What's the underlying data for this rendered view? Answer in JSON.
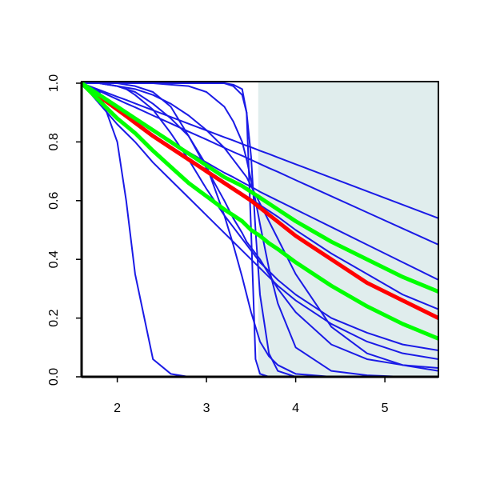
{
  "chart_data": {
    "type": "line",
    "x": [
      1.6,
      1.8,
      2.0,
      2.1,
      2.2,
      2.4,
      2.6,
      2.8,
      3.0,
      3.2,
      3.3,
      3.4,
      3.45,
      3.5,
      3.55,
      3.6,
      3.7,
      3.8,
      4.0,
      4.4,
      4.8,
      5.2,
      5.6
    ],
    "xlim": [
      1.6,
      5.6
    ],
    "xticks": [
      2,
      3,
      4,
      5
    ],
    "ylim": [
      0,
      1
    ],
    "yticks": [
      {
        "value": 0,
        "label": "0.0"
      },
      0.2,
      0.4,
      0.6,
      0.8,
      {
        "value": 1,
        "label": "1.0"
      }
    ],
    "shade": {
      "xmin": 3.58,
      "xmax": 5.6,
      "color": "#e0eded"
    },
    "series": [
      {
        "color": "#1a1ae6",
        "values": [
          1,
          0.97,
          0.8,
          0.6,
          0.35,
          0.06,
          0.01,
          0,
          0,
          0,
          0,
          0,
          0,
          0,
          0,
          0,
          0,
          0,
          0,
          0,
          0,
          0,
          0
        ]
      },
      {
        "color": "#1a1ae6",
        "values": [
          1,
          1,
          0.99,
          0.98,
          0.97,
          0.93,
          0.88,
          0.82,
          0.72,
          0.55,
          0.45,
          0.34,
          0.28,
          0.22,
          0.17,
          0.12,
          0.07,
          0.04,
          0.01,
          0,
          0,
          0,
          0
        ]
      },
      {
        "color": "#1a1ae6",
        "values": [
          1,
          1,
          1,
          1,
          1,
          1,
          1,
          1,
          1,
          1,
          0.995,
          0.98,
          0.9,
          0.5,
          0.06,
          0.01,
          0,
          0,
          0,
          0,
          0,
          0,
          0
        ]
      },
      {
        "color": "#1a1ae6",
        "values": [
          1,
          1,
          1,
          1,
          1,
          1,
          1,
          1,
          1,
          1,
          0.99,
          0.96,
          0.9,
          0.75,
          0.5,
          0.28,
          0.08,
          0.02,
          0,
          0,
          0,
          0,
          0
        ]
      },
      {
        "color": "#1a1ae6",
        "values": [
          1,
          1,
          1,
          1,
          1,
          1,
          0.995,
          0.99,
          0.97,
          0.92,
          0.87,
          0.8,
          0.74,
          0.67,
          0.6,
          0.52,
          0.37,
          0.25,
          0.1,
          0.02,
          0.005,
          0,
          0
        ]
      },
      {
        "color": "#1a1ae6",
        "values": [
          1,
          1,
          0.99,
          0.985,
          0.98,
          0.96,
          0.93,
          0.89,
          0.84,
          0.78,
          0.74,
          0.7,
          0.68,
          0.65,
          0.62,
          0.59,
          0.53,
          0.47,
          0.35,
          0.17,
          0.08,
          0.04,
          0.02
        ]
      },
      {
        "color": "#1a1ae6",
        "values": [
          1,
          0.977,
          0.954,
          0.943,
          0.931,
          0.908,
          0.885,
          0.862,
          0.839,
          0.816,
          0.805,
          0.793,
          0.787,
          0.782,
          0.776,
          0.77,
          0.759,
          0.747,
          0.724,
          0.678,
          0.632,
          0.586,
          0.54
        ]
      },
      {
        "color": "#1a1ae6",
        "values": [
          1,
          0.973,
          0.945,
          0.931,
          0.918,
          0.89,
          0.863,
          0.835,
          0.808,
          0.78,
          0.766,
          0.753,
          0.746,
          0.739,
          0.732,
          0.725,
          0.711,
          0.698,
          0.67,
          0.615,
          0.56,
          0.505,
          0.45
        ]
      },
      {
        "color": "#1a1ae6",
        "values": [
          1,
          0.96,
          0.92,
          0.9,
          0.88,
          0.84,
          0.8,
          0.765,
          0.73,
          0.695,
          0.68,
          0.663,
          0.655,
          0.647,
          0.639,
          0.63,
          0.615,
          0.6,
          0.57,
          0.51,
          0.45,
          0.39,
          0.33
        ]
      },
      {
        "color": "#1a1ae6",
        "values": [
          1,
          0.955,
          0.91,
          0.89,
          0.87,
          0.825,
          0.785,
          0.745,
          0.705,
          0.665,
          0.645,
          0.625,
          0.615,
          0.605,
          0.595,
          0.585,
          0.565,
          0.545,
          0.5,
          0.42,
          0.35,
          0.28,
          0.23
        ]
      },
      {
        "color": "#1a1ae6",
        "values": [
          1,
          0.93,
          0.86,
          0.83,
          0.8,
          0.73,
          0.67,
          0.61,
          0.55,
          0.49,
          0.46,
          0.43,
          0.415,
          0.4,
          0.385,
          0.37,
          0.34,
          0.31,
          0.26,
          0.18,
          0.12,
          0.08,
          0.06
        ]
      },
      {
        "color": "#1a1ae6",
        "values": [
          1,
          1,
          0.99,
          0.98,
          0.96,
          0.91,
          0.83,
          0.74,
          0.64,
          0.55,
          0.51,
          0.47,
          0.45,
          0.43,
          0.41,
          0.39,
          0.36,
          0.33,
          0.28,
          0.2,
          0.15,
          0.11,
          0.09
        ]
      },
      {
        "color": "#1a1ae6",
        "values": [
          1,
          1,
          1,
          0.995,
          0.99,
          0.97,
          0.92,
          0.82,
          0.71,
          0.6,
          0.54,
          0.49,
          0.46,
          0.44,
          0.42,
          0.4,
          0.35,
          0.3,
          0.22,
          0.11,
          0.06,
          0.04,
          0.03
        ]
      },
      {
        "color": "#ff0000",
        "values": [
          1,
          0.955,
          0.91,
          0.888,
          0.865,
          0.82,
          0.78,
          0.74,
          0.7,
          0.66,
          0.64,
          0.62,
          0.61,
          0.6,
          0.588,
          0.576,
          0.552,
          0.528,
          0.48,
          0.4,
          0.32,
          0.26,
          0.2
        ]
      },
      {
        "color": "#00ff00",
        "values": [
          1,
          0.96,
          0.92,
          0.9,
          0.88,
          0.84,
          0.8,
          0.76,
          0.72,
          0.68,
          0.665,
          0.65,
          0.64,
          0.63,
          0.62,
          0.61,
          0.59,
          0.57,
          0.53,
          0.46,
          0.4,
          0.34,
          0.29
        ]
      },
      {
        "color": "#00ff00",
        "values": [
          1,
          0.94,
          0.88,
          0.855,
          0.83,
          0.77,
          0.715,
          0.66,
          0.615,
          0.57,
          0.55,
          0.53,
          0.515,
          0.5,
          0.49,
          0.48,
          0.455,
          0.435,
          0.39,
          0.31,
          0.24,
          0.18,
          0.13
        ]
      }
    ]
  }
}
